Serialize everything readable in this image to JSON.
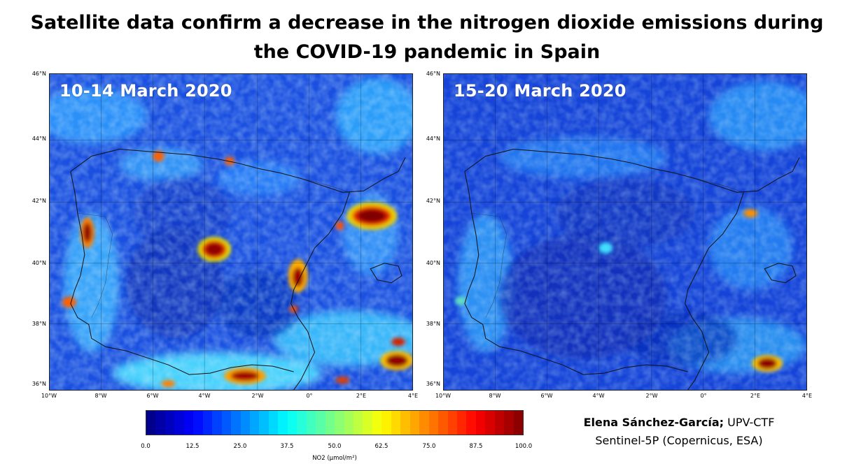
{
  "title": {
    "line1": "Satellite data confirm a decrease in the nitrogen dioxide emissions during",
    "line2": "the COVID-19 pandemic in Spain"
  },
  "panels": [
    {
      "date_label": "10-14 March 2020"
    },
    {
      "date_label": "15-20 March 2020"
    }
  ],
  "lat_ticks": [
    "46°N",
    "44°N",
    "42°N",
    "40°N",
    "38°N",
    "36°N"
  ],
  "lon_ticks": [
    "10°W",
    "8°W",
    "6°W",
    "4°W",
    "2°W",
    "0°",
    "2°E",
    "4°E"
  ],
  "colorbar": {
    "ticks": [
      "0.0",
      "12.5",
      "25.0",
      "37.5",
      "50.0",
      "62.5",
      "75.0",
      "87.5",
      "100.0"
    ],
    "label": "NO2 (µmol/m²)",
    "colormap": "jet",
    "range": [
      0,
      100
    ]
  },
  "credits": {
    "author": "Elena Sánchez-García;",
    "affiliation": " UPV-CTF",
    "source": "Sentinel-5P (Copernicus, ESA)"
  },
  "colors": {
    "low": "#00008f",
    "mid_low": "#0060ff",
    "mid": "#3fdfff",
    "mid_high": "#ffdf00",
    "high": "#e02000",
    "max": "#800000"
  }
}
